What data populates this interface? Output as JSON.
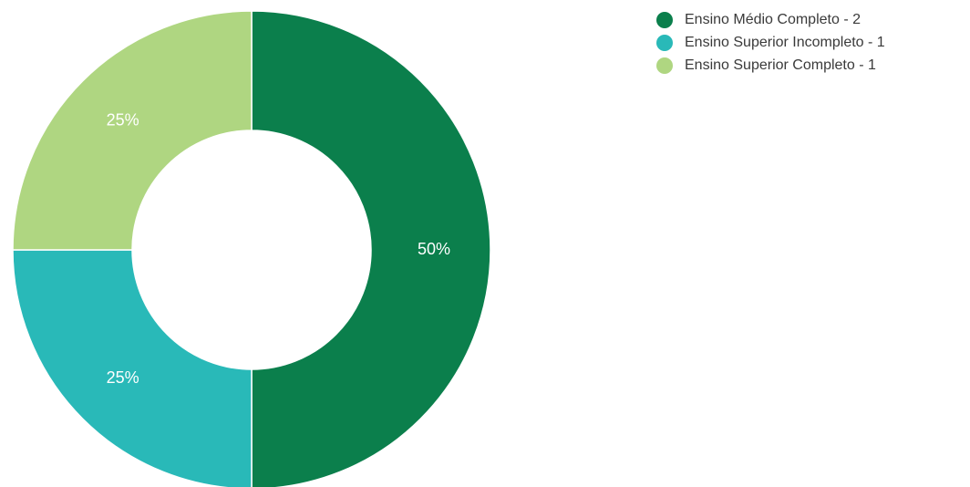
{
  "chart_data": {
    "type": "pie",
    "variant": "donut",
    "legend_position": "top-right",
    "slices": [
      {
        "label": "Ensino Médio Completo - 2",
        "category": "Ensino Médio Completo",
        "value": 2,
        "percent_label": "50%",
        "color": "#0b7f4c"
      },
      {
        "label": "Ensino Superior Incompleto - 1",
        "category": "Ensino Superior Incompleto",
        "value": 1,
        "percent_label": "25%",
        "color": "#29b9b8"
      },
      {
        "label": "Ensino Superior Completo - 1",
        "category": "Ensino Superior Completo",
        "value": 1,
        "percent_label": "25%",
        "color": "#afd681"
      }
    ]
  }
}
